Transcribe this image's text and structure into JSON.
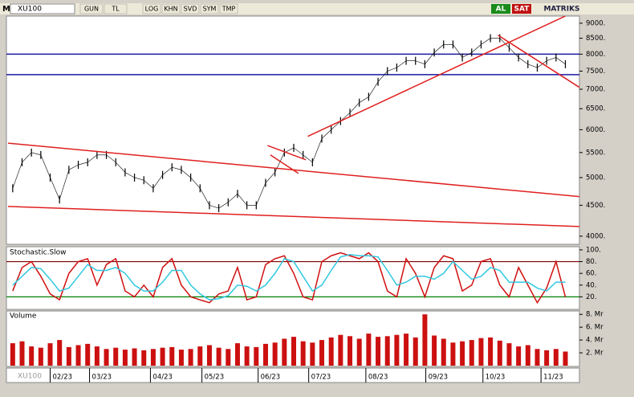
{
  "toolbar": {
    "symbol": "XU100",
    "menu": "M",
    "buttons": [
      "GUN",
      "TL",
      "LOG",
      "KHN",
      "SVD",
      "SYM",
      "TMP"
    ],
    "buy": "AL",
    "sell": "SAT",
    "brand": "MATRIKS"
  },
  "chart_data": [
    {
      "type": "line",
      "name": "XU100",
      "color": "#000000",
      "log_scale": true,
      "xlim": [
        -0.5,
        60.5
      ],
      "xticks": [
        {
          "value": 4.0,
          "label": "02/23"
        },
        {
          "value": 8.2,
          "label": "03/23"
        },
        {
          "value": 14.7,
          "label": "04/23"
        },
        {
          "value": 20.2,
          "label": "05/23"
        },
        {
          "value": 26.2,
          "label": "06/23"
        },
        {
          "value": 31.6,
          "label": "07/23"
        },
        {
          "value": 37.7,
          "label": "08/23"
        },
        {
          "value": 44.1,
          "label": "09/23"
        },
        {
          "value": 50.2,
          "label": "10/23"
        },
        {
          "value": 56.4,
          "label": "11/23"
        }
      ],
      "ylim": [
        3890,
        9220
      ],
      "yticks": [
        {
          "value": 4000,
          "label": "4000."
        },
        {
          "value": 4500,
          "label": "4500."
        },
        {
          "value": 5000,
          "label": "5000."
        },
        {
          "value": 5500,
          "label": "5500."
        },
        {
          "value": 6000,
          "label": "6000."
        },
        {
          "value": 6500,
          "label": "6500."
        },
        {
          "value": 7000,
          "label": "7000."
        },
        {
          "value": 7500,
          "label": "7500."
        },
        {
          "value": 8000,
          "label": "8000."
        },
        {
          "value": 8500,
          "label": "8500."
        },
        {
          "value": 9000,
          "label": "9000."
        }
      ],
      "values": [
        4800,
        5300,
        5500,
        5450,
        5000,
        4600,
        5150,
        5250,
        5300,
        5450,
        5450,
        5300,
        5100,
        5000,
        4950,
        4800,
        5050,
        5200,
        5150,
        5000,
        4800,
        4500,
        4450,
        4550,
        4700,
        4500,
        4500,
        4900,
        5100,
        5500,
        5600,
        5450,
        5300,
        5800,
        6000,
        6200,
        6400,
        6650,
        6800,
        7200,
        7500,
        7600,
        7800,
        7800,
        7700,
        8050,
        8300,
        8300,
        7900,
        8050,
        8300,
        8500,
        8500,
        8200,
        7900,
        7700,
        7600,
        7800,
        7900,
        7700
      ],
      "hlines": {
        "color": "#1a1aa0",
        "values": [
          8000,
          7400
        ]
      },
      "trendlines": {
        "color": "#e02020",
        "lines": [
          {
            "from": [
              -0.5,
              5700
            ],
            "to": [
              60.5,
              4650
            ]
          },
          {
            "from": [
              -0.5,
              4480
            ],
            "to": [
              60.5,
              4150
            ]
          },
          {
            "from": [
              31.5,
              5850
            ],
            "to": [
              59.0,
              9250
            ]
          },
          {
            "from": [
              51.8,
              8600
            ],
            "to": [
              60.5,
              7050
            ]
          },
          {
            "from": [
              27.2,
              5650
            ],
            "to": [
              31.3,
              5350
            ]
          },
          {
            "from": [
              27.5,
              5450
            ],
            "to": [
              30.5,
              5080
            ]
          }
        ]
      }
    },
    {
      "type": "line",
      "title": "Stochastic.Slow",
      "ylim": [
        0,
        104
      ],
      "yticks": [
        {
          "value": 20,
          "label": "20."
        },
        {
          "value": 40,
          "label": "40."
        },
        {
          "value": 60,
          "label": "60."
        },
        {
          "value": 80,
          "label": "80."
        },
        {
          "value": 100,
          "label": "100."
        }
      ],
      "hlines": [
        {
          "value": 80,
          "color": "#800000"
        },
        {
          "value": 20,
          "color": "#008000"
        }
      ],
      "series": [
        {
          "color": "#d01010",
          "values": [
            30,
            70,
            80,
            55,
            25,
            15,
            60,
            80,
            85,
            40,
            75,
            85,
            30,
            20,
            40,
            20,
            70,
            85,
            40,
            20,
            15,
            10,
            25,
            30,
            70,
            15,
            20,
            75,
            85,
            90,
            60,
            20,
            15,
            80,
            90,
            95,
            90,
            85,
            95,
            80,
            30,
            20,
            85,
            60,
            20,
            70,
            90,
            85,
            30,
            40,
            80,
            85,
            40,
            20,
            70,
            40,
            10,
            35,
            80,
            20
          ]
        },
        {
          "color": "#30c8e0",
          "values": [
            40,
            55,
            70,
            68,
            50,
            30,
            35,
            55,
            75,
            65,
            65,
            70,
            60,
            40,
            30,
            30,
            45,
            65,
            65,
            40,
            25,
            15,
            17,
            22,
            40,
            38,
            30,
            40,
            60,
            85,
            80,
            55,
            30,
            40,
            65,
            88,
            92,
            90,
            90,
            88,
            65,
            40,
            45,
            55,
            55,
            50,
            60,
            80,
            65,
            50,
            55,
            70,
            65,
            45,
            45,
            45,
            35,
            30,
            45,
            45
          ]
        }
      ]
    },
    {
      "type": "bar",
      "title": "Volume",
      "color": "#cc1010",
      "ylim": [
        0,
        8.4
      ],
      "yticks": [
        {
          "value": 2,
          "label": "2. Mr"
        },
        {
          "value": 4,
          "label": "4. Mr"
        },
        {
          "value": 6,
          "label": "6. Mr"
        },
        {
          "value": 8,
          "label": "8. Mr"
        }
      ],
      "values": [
        3.5,
        3.8,
        3.0,
        2.8,
        3.5,
        4.0,
        2.9,
        3.2,
        3.4,
        3.0,
        2.6,
        2.8,
        2.5,
        2.7,
        2.4,
        2.6,
        2.8,
        2.9,
        2.5,
        2.6,
        3.0,
        3.2,
        2.8,
        2.6,
        3.5,
        3.0,
        2.9,
        3.4,
        3.6,
        4.2,
        4.5,
        3.8,
        3.6,
        4.0,
        4.4,
        4.8,
        4.6,
        4.2,
        5.0,
        4.5,
        4.6,
        4.8,
        5.0,
        4.4,
        8.0,
        4.7,
        4.2,
        3.6,
        3.8,
        4.0,
        4.3,
        4.4,
        3.9,
        3.5,
        3.0,
        3.2,
        2.6,
        2.4,
        2.6,
        2.2
      ]
    }
  ]
}
